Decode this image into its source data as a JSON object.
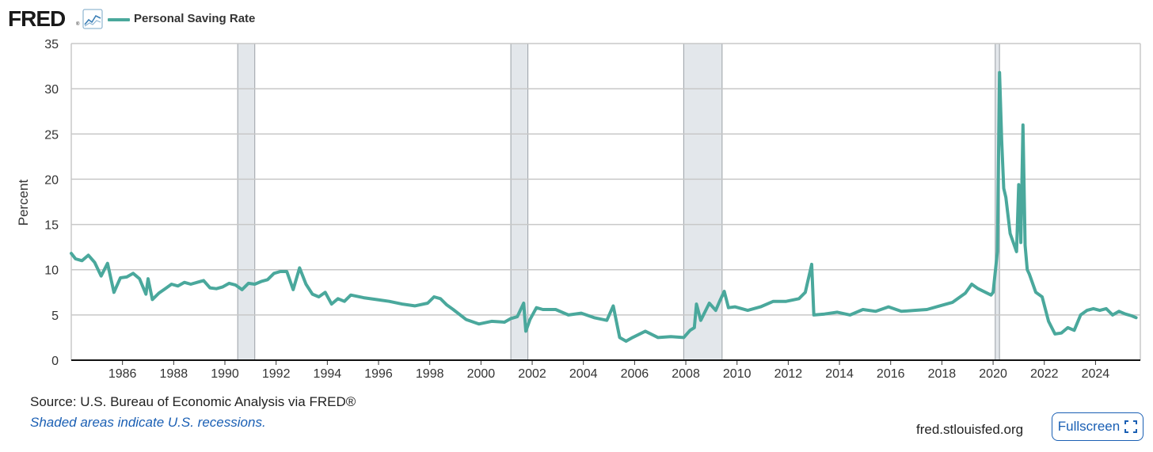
{
  "header": {
    "logo_text": "FRED",
    "logo_mark": "®",
    "graph_icon": "line-graph-icon",
    "series_label": "Personal Saving Rate"
  },
  "chart_data": {
    "type": "line",
    "title": "",
    "xlabel": "",
    "ylabel": "Percent",
    "ylim": [
      0,
      35
    ],
    "y_ticks": [
      0,
      5,
      10,
      15,
      20,
      25,
      30,
      35
    ],
    "x_ticks": [
      "1986",
      "1988",
      "1990",
      "1992",
      "1994",
      "1996",
      "1998",
      "2000",
      "2002",
      "2004",
      "2006",
      "2008",
      "2010",
      "2012",
      "2014",
      "2016",
      "2018",
      "2020",
      "2022",
      "2024"
    ],
    "grid": true,
    "line_color": "#4aa89c",
    "recession_color": "#e3e7eb",
    "recessions": [
      {
        "start": "1990-07",
        "end": "1991-03"
      },
      {
        "start": "2001-03",
        "end": "2001-11"
      },
      {
        "start": "2007-12",
        "end": "2009-06"
      },
      {
        "start": "2020-02",
        "end": "2020-04"
      }
    ],
    "series": [
      {
        "x": [
          "1984-01",
          "1984-03",
          "1984-06",
          "1984-09",
          "1984-12",
          "1985-03",
          "1985-06",
          "1985-09",
          "1985-12",
          "1986-03",
          "1986-06",
          "1986-09",
          "1986-12",
          "1987-01",
          "1987-03",
          "1987-06",
          "1987-09",
          "1987-12",
          "1988-03",
          "1988-06",
          "1988-09",
          "1988-12",
          "1989-03",
          "1989-06",
          "1989-09",
          "1989-12",
          "1990-03",
          "1990-06",
          "1990-09",
          "1990-12",
          "1991-03",
          "1991-06",
          "1991-09",
          "1991-12",
          "1992-03",
          "1992-06",
          "1992-09",
          "1992-12",
          "1993-03",
          "1993-06",
          "1993-09",
          "1993-12",
          "1994-03",
          "1994-06",
          "1994-09",
          "1994-12",
          "1995-06",
          "1995-12",
          "1996-06",
          "1996-12",
          "1997-06",
          "1997-12",
          "1998-03",
          "1998-06",
          "1998-09",
          "1998-12",
          "1999-06",
          "1999-12",
          "2000-06",
          "2000-12",
          "2001-03",
          "2001-06",
          "2001-09",
          "2001-10",
          "2001-12",
          "2002-03",
          "2002-06",
          "2002-12",
          "2003-06",
          "2003-12",
          "2004-06",
          "2004-12",
          "2005-03",
          "2005-06",
          "2005-09",
          "2005-12",
          "2006-06",
          "2006-12",
          "2007-06",
          "2007-12",
          "2008-03",
          "2008-05",
          "2008-06",
          "2008-08",
          "2008-12",
          "2009-03",
          "2009-05",
          "2009-07",
          "2009-09",
          "2009-12",
          "2010-06",
          "2010-12",
          "2011-06",
          "2011-12",
          "2012-06",
          "2012-09",
          "2012-12",
          "2013-01",
          "2013-06",
          "2013-12",
          "2014-06",
          "2014-12",
          "2015-06",
          "2015-12",
          "2016-06",
          "2016-12",
          "2017-06",
          "2017-12",
          "2018-06",
          "2018-12",
          "2019-03",
          "2019-06",
          "2019-12",
          "2020-01",
          "2020-03",
          "2020-04",
          "2020-05",
          "2020-06",
          "2020-07",
          "2020-09",
          "2020-12",
          "2021-01",
          "2021-02",
          "2021-03",
          "2021-04",
          "2021-05",
          "2021-06",
          "2021-09",
          "2021-12",
          "2022-03",
          "2022-06",
          "2022-09",
          "2022-12",
          "2023-03",
          "2023-06",
          "2023-09",
          "2023-12",
          "2024-03",
          "2024-06",
          "2024-09",
          "2024-12",
          "2025-03",
          "2025-06",
          "2025-08"
        ],
        "values": [
          11.8,
          11.2,
          11.0,
          11.6,
          10.8,
          9.3,
          10.7,
          7.5,
          9.1,
          9.2,
          9.6,
          9.0,
          7.3,
          9.0,
          6.7,
          7.4,
          7.9,
          8.4,
          8.2,
          8.6,
          8.4,
          8.6,
          8.8,
          8.0,
          7.9,
          8.1,
          8.5,
          8.3,
          7.8,
          8.5,
          8.4,
          8.7,
          8.9,
          9.6,
          9.8,
          9.8,
          7.8,
          10.2,
          8.4,
          7.3,
          7.0,
          7.5,
          6.2,
          6.8,
          6.5,
          7.2,
          6.9,
          6.7,
          6.5,
          6.2,
          6.0,
          6.3,
          7.0,
          6.8,
          6.1,
          5.6,
          4.5,
          4.0,
          4.3,
          4.2,
          4.6,
          4.8,
          6.3,
          3.2,
          4.5,
          5.8,
          5.6,
          5.6,
          5.0,
          5.2,
          4.7,
          4.4,
          6.0,
          2.5,
          2.1,
          2.5,
          3.2,
          2.5,
          2.6,
          2.5,
          3.3,
          3.6,
          6.2,
          4.4,
          6.3,
          5.5,
          6.6,
          7.6,
          5.8,
          5.9,
          5.5,
          5.9,
          6.5,
          6.5,
          6.8,
          7.5,
          10.6,
          5.0,
          5.1,
          5.3,
          5.0,
          5.6,
          5.4,
          5.9,
          5.4,
          5.5,
          5.6,
          6.0,
          6.4,
          7.4,
          8.4,
          7.9,
          7.2,
          7.5,
          12.0,
          31.8,
          24.3,
          19.0,
          18.0,
          14.0,
          12.0,
          19.4,
          13.0,
          26.0,
          12.7,
          10.0,
          9.5,
          7.5,
          7.0,
          4.3,
          2.9,
          3.0,
          3.6,
          3.3,
          5.0,
          5.5,
          5.7,
          5.5,
          5.7,
          5.0,
          5.4,
          5.1,
          4.9,
          4.7
        ]
      }
    ]
  },
  "footer": {
    "source": "Source: U.S. Bureau of Economic Analysis via FRED®",
    "recession_note": "Shaded areas indicate U.S. recessions.",
    "site": "fred.stlouisfed.org",
    "fullscreen_label": "Fullscreen",
    "fullscreen_icon": "expand-corners-icon"
  }
}
